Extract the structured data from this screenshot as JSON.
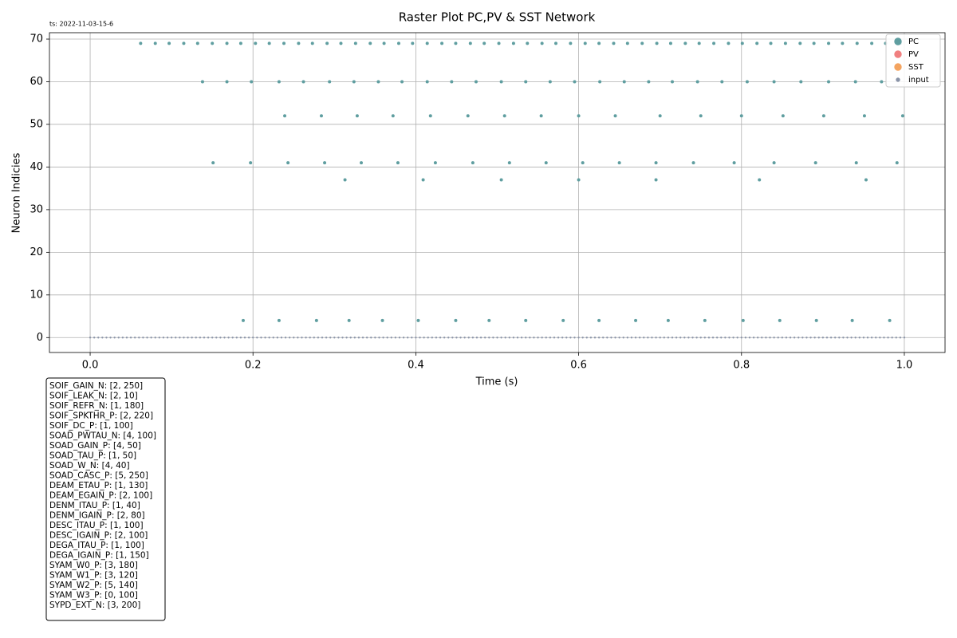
{
  "chart_data": {
    "type": "scatter",
    "title": "Raster Plot PC,PV & SST Network",
    "timestamp": "ts: 2022-11-03-15-6",
    "x_label": "Time (s)",
    "y_label": "Neuron Indicies",
    "xlim": [
      -0.05,
      1.05
    ],
    "ylim": [
      -3.5,
      71.5
    ],
    "xticks": [
      {
        "value": 0,
        "label": "0.0"
      },
      0.2,
      0.4,
      0.6,
      0.8,
      {
        "value": 1,
        "label": "1.0"
      }
    ],
    "yticks": [
      0,
      10,
      20,
      30,
      40,
      50,
      60,
      70
    ],
    "grid": true,
    "legend": "upper right",
    "series": [
      {
        "name": "PC",
        "color": "#5f9ea0",
        "x": [
          0.062,
          0.08,
          0.097,
          0.115,
          0.132,
          0.15,
          0.168,
          0.185,
          0.203,
          0.22,
          0.238,
          0.256,
          0.273,
          0.291,
          0.308,
          0.326,
          0.344,
          0.361,
          0.379,
          0.396,
          0.414,
          0.432,
          0.449,
          0.467,
          0.484,
          0.502,
          0.52,
          0.537,
          0.555,
          0.572,
          0.59,
          0.608,
          0.625,
          0.643,
          0.66,
          0.678,
          0.696,
          0.713,
          0.731,
          0.748,
          0.766,
          0.784,
          0.801,
          0.819,
          0.836,
          0.854,
          0.872,
          0.889,
          0.907,
          0.924,
          0.942,
          0.96,
          0.977,
          0.995,
          0.138,
          0.168,
          0.198,
          0.232,
          0.262,
          0.294,
          0.324,
          0.354,
          0.383,
          0.414,
          0.444,
          0.474,
          0.505,
          0.535,
          0.565,
          0.595,
          0.626,
          0.656,
          0.686,
          0.715,
          0.746,
          0.776,
          0.807,
          0.84,
          0.873,
          0.907,
          0.94,
          0.972,
          0.239,
          0.284,
          0.328,
          0.372,
          0.418,
          0.464,
          0.509,
          0.554,
          0.6,
          0.645,
          0.7,
          0.75,
          0.8,
          0.851,
          0.901,
          0.951,
          0.998,
          0.151,
          0.197,
          0.243,
          0.288,
          0.333,
          0.378,
          0.424,
          0.47,
          0.515,
          0.56,
          0.605,
          0.65,
          0.695,
          0.741,
          0.791,
          0.84,
          0.891,
          0.941,
          0.991,
          0.313,
          0.409,
          0.505,
          0.6,
          0.695,
          0.822,
          0.953,
          0.188,
          0.232,
          0.278,
          0.318,
          0.359,
          0.403,
          0.449,
          0.49,
          0.535,
          0.581,
          0.625,
          0.67,
          0.71,
          0.755,
          0.802,
          0.847,
          0.892,
          0.936,
          0.982
        ],
        "values": [
          69,
          69,
          69,
          69,
          69,
          69,
          69,
          69,
          69,
          69,
          69,
          69,
          69,
          69,
          69,
          69,
          69,
          69,
          69,
          69,
          69,
          69,
          69,
          69,
          69,
          69,
          69,
          69,
          69,
          69,
          69,
          69,
          69,
          69,
          69,
          69,
          69,
          69,
          69,
          69,
          69,
          69,
          69,
          69,
          69,
          69,
          69,
          69,
          69,
          69,
          69,
          69,
          69,
          69,
          60,
          60,
          60,
          60,
          60,
          60,
          60,
          60,
          60,
          60,
          60,
          60,
          60,
          60,
          60,
          60,
          60,
          60,
          60,
          60,
          60,
          60,
          60,
          60,
          60,
          60,
          60,
          60,
          52,
          52,
          52,
          52,
          52,
          52,
          52,
          52,
          52,
          52,
          52,
          52,
          52,
          52,
          52,
          52,
          52,
          41,
          41,
          41,
          41,
          41,
          41,
          41,
          41,
          41,
          41,
          41,
          41,
          41,
          41,
          41,
          41,
          41,
          41,
          41,
          37,
          37,
          37,
          37,
          37,
          37,
          37,
          4,
          4,
          4,
          4,
          4,
          4,
          4,
          4,
          4,
          4,
          4,
          4,
          4,
          4,
          4,
          4,
          4,
          4,
          4
        ]
      },
      {
        "name": "PV",
        "color": "#f08080",
        "x": [],
        "values": []
      },
      {
        "name": "SST",
        "color": "#f4a460",
        "x": [],
        "values": []
      },
      {
        "name": "input",
        "color": "#8a94a8",
        "x": [
          0,
          0.005,
          0.01,
          0.015,
          0.02,
          0.025,
          0.03,
          0.035,
          0.04,
          0.045,
          0.05,
          0.055,
          0.06,
          0.065,
          0.07,
          0.075,
          0.08,
          0.085,
          0.09,
          0.095,
          0.1,
          0.105,
          0.11,
          0.115,
          0.12,
          0.125,
          0.13,
          0.135,
          0.14,
          0.145,
          0.15,
          0.155,
          0.16,
          0.165,
          0.17,
          0.175,
          0.18,
          0.185,
          0.19,
          0.195,
          0.2,
          0.205,
          0.21,
          0.215,
          0.22,
          0.225,
          0.23,
          0.235,
          0.24,
          0.245,
          0.25,
          0.255,
          0.26,
          0.265,
          0.27,
          0.275,
          0.28,
          0.285,
          0.29,
          0.295,
          0.3,
          0.305,
          0.31,
          0.315,
          0.32,
          0.325,
          0.33,
          0.335,
          0.34,
          0.345,
          0.35,
          0.355,
          0.36,
          0.365,
          0.37,
          0.375,
          0.38,
          0.385,
          0.39,
          0.395,
          0.4,
          0.405,
          0.41,
          0.415,
          0.42,
          0.425,
          0.43,
          0.435,
          0.44,
          0.445,
          0.45,
          0.455,
          0.46,
          0.465,
          0.47,
          0.475,
          0.48,
          0.485,
          0.49,
          0.495,
          0.5,
          0.505,
          0.51,
          0.515,
          0.52,
          0.525,
          0.53,
          0.535,
          0.54,
          0.545,
          0.55,
          0.555,
          0.56,
          0.565,
          0.57,
          0.575,
          0.58,
          0.585,
          0.59,
          0.595,
          0.6,
          0.605,
          0.61,
          0.615,
          0.62,
          0.625,
          0.63,
          0.635,
          0.64,
          0.645,
          0.65,
          0.655,
          0.66,
          0.665,
          0.67,
          0.675,
          0.68,
          0.685,
          0.69,
          0.695,
          0.7,
          0.705,
          0.71,
          0.715,
          0.72,
          0.725,
          0.73,
          0.735,
          0.74,
          0.745,
          0.75,
          0.755,
          0.76,
          0.765,
          0.77,
          0.775,
          0.78,
          0.785,
          0.79,
          0.795,
          0.8,
          0.805,
          0.81,
          0.815,
          0.82,
          0.825,
          0.83,
          0.835,
          0.84,
          0.845,
          0.85,
          0.855,
          0.86,
          0.865,
          0.87,
          0.875,
          0.88,
          0.885,
          0.89,
          0.895,
          0.9,
          0.905,
          0.91,
          0.915,
          0.92,
          0.925,
          0.93,
          0.935,
          0.94,
          0.945,
          0.95,
          0.955,
          0.96,
          0.965,
          0.97,
          0.975,
          0.98,
          0.985,
          0.99,
          0.995,
          1
        ],
        "values": [
          0,
          0,
          0,
          0,
          0,
          0,
          0,
          0,
          0,
          0,
          0,
          0,
          0,
          0,
          0,
          0,
          0,
          0,
          0,
          0,
          0,
          0,
          0,
          0,
          0,
          0,
          0,
          0,
          0,
          0,
          0,
          0,
          0,
          0,
          0,
          0,
          0,
          0,
          0,
          0,
          0,
          0,
          0,
          0,
          0,
          0,
          0,
          0,
          0,
          0,
          0,
          0,
          0,
          0,
          0,
          0,
          0,
          0,
          0,
          0,
          0,
          0,
          0,
          0,
          0,
          0,
          0,
          0,
          0,
          0,
          0,
          0,
          0,
          0,
          0,
          0,
          0,
          0,
          0,
          0,
          0,
          0,
          0,
          0,
          0,
          0,
          0,
          0,
          0,
          0,
          0,
          0,
          0,
          0,
          0,
          0,
          0,
          0,
          0,
          0,
          0,
          0,
          0,
          0,
          0,
          0,
          0,
          0,
          0,
          0,
          0,
          0,
          0,
          0,
          0,
          0,
          0,
          0,
          0,
          0,
          0,
          0,
          0,
          0,
          0,
          0,
          0,
          0,
          0,
          0,
          0,
          0,
          0,
          0,
          0,
          0,
          0,
          0,
          0,
          0,
          0,
          0,
          0,
          0,
          0,
          0,
          0,
          0,
          0,
          0,
          0,
          0,
          0,
          0,
          0,
          0,
          0,
          0,
          0,
          0,
          0,
          0,
          0,
          0,
          0,
          0,
          0,
          0,
          0,
          0,
          0,
          0,
          0,
          0,
          0,
          0,
          0,
          0,
          0,
          0,
          0,
          0,
          0,
          0,
          0,
          0,
          0,
          0,
          0,
          0,
          0,
          0,
          0,
          0,
          0,
          0,
          0,
          0,
          0,
          0,
          0
        ]
      }
    ],
    "parameters": [
      "SOIF_GAIN_N: [2, 250]",
      "SOIF_LEAK_N: [2, 10]",
      "SOIF_REFR_N: [1, 180]",
      "SOIF_SPKTHR_P: [2, 220]",
      "SOIF_DC_P: [1, 100]",
      "SOAD_PWTAU_N: [4, 100]",
      "SOAD_GAIN_P: [4, 50]",
      "SOAD_TAU_P: [1, 50]",
      "SOAD_W_N: [4, 40]",
      "SOAD_CASC_P: [5, 250]",
      "DEAM_ETAU_P: [1, 130]",
      "DEAM_EGAIN_P: [2, 100]",
      "DENM_ITAU_P: [1, 40]",
      "DENM_IGAIN_P: [2, 80]",
      "DESC_ITAU_P: [1, 100]",
      "DESC_IGAIN_P: [2, 100]",
      "DEGA_ITAU_P: [1, 100]",
      "DEGA_IGAIN_P: [1, 150]",
      "SYAM_W0_P: [3, 180]",
      "SYAM_W1_P: [3, 120]",
      "SYAM_W2_P: [5, 140]",
      "SYAM_W3_P: [0, 100]",
      "SYPD_EXT_N: [3, 200]"
    ]
  }
}
